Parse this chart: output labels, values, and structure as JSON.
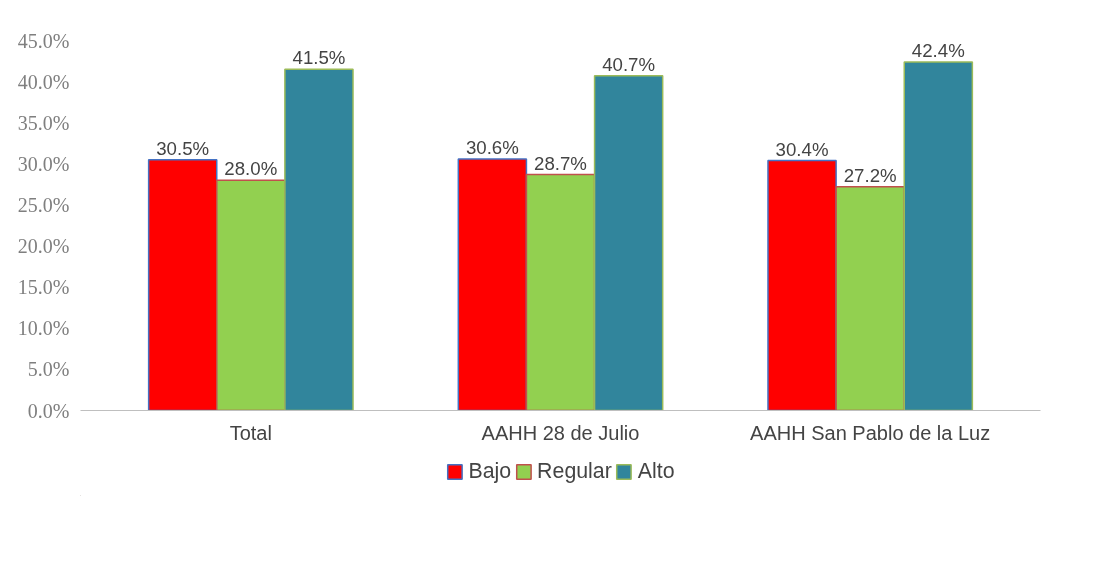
{
  "chart_data": {
    "type": "bar",
    "categories": [
      "Total",
      "AAHH 28 de Julio",
      "AAHH San Pablo de la Luz"
    ],
    "series": [
      {
        "name": "Bajo",
        "color": "#ff0000",
        "values": [
          30.5,
          30.6,
          30.4
        ],
        "value_labels": [
          "30.5%",
          "30.6%",
          "30.4%"
        ]
      },
      {
        "name": "Regular",
        "color": "#92d050",
        "values": [
          28.0,
          28.7,
          27.2
        ],
        "value_labels": [
          "28.0%",
          "28.7%",
          "27.2%"
        ]
      },
      {
        "name": "Alto",
        "color": "#31859c",
        "values": [
          41.5,
          40.7,
          42.4
        ],
        "value_labels": [
          "41.5%",
          "40.7%",
          "42.4%"
        ]
      }
    ],
    "ylim": [
      0,
      45
    ],
    "yticks": [
      {
        "value": 0,
        "label": "0.0%"
      },
      {
        "value": 5,
        "label": "5.0%"
      },
      {
        "value": 10,
        "label": "10.0%"
      },
      {
        "value": 15,
        "label": "15.0%"
      },
      {
        "value": 20,
        "label": "20.0%"
      },
      {
        "value": 25,
        "label": "25.0%"
      },
      {
        "value": 30,
        "label": "30.0%"
      },
      {
        "value": 35,
        "label": "35.0%"
      },
      {
        "value": 40,
        "label": "40.0%"
      },
      {
        "value": 45,
        "label": "45.0%"
      }
    ],
    "grid": false,
    "legend": "bottom"
  }
}
